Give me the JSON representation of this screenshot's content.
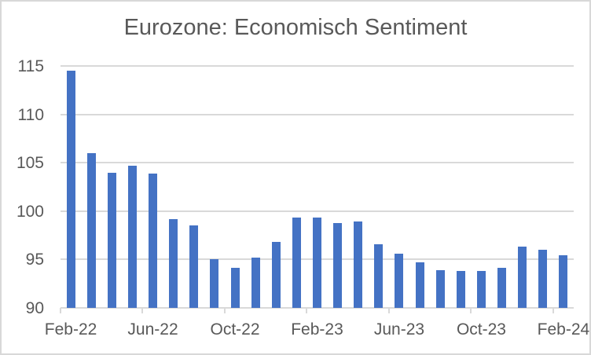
{
  "chart_data": {
    "type": "bar",
    "title": "Eurozone: Economisch Sentiment",
    "categories": [
      "Feb-22",
      "Mar-22",
      "Apr-22",
      "May-22",
      "Jun-22",
      "Jul-22",
      "Aug-22",
      "Sep-22",
      "Oct-22",
      "Nov-22",
      "Dec-22",
      "Jan-23",
      "Feb-23",
      "Mar-23",
      "Apr-23",
      "May-23",
      "Jun-23",
      "Jul-23",
      "Aug-23",
      "Sep-23",
      "Oct-23",
      "Nov-23",
      "Dec-23",
      "Jan-24",
      "Feb-24"
    ],
    "values": [
      114.5,
      106.0,
      104.0,
      104.7,
      103.9,
      99.2,
      98.5,
      95.0,
      94.1,
      95.2,
      96.8,
      99.3,
      99.3,
      98.8,
      98.9,
      96.6,
      95.6,
      94.7,
      93.9,
      93.8,
      93.8,
      94.1,
      96.3,
      96.0,
      95.4
    ],
    "x_tick_labels": [
      "Feb-22",
      "Jun-22",
      "Oct-22",
      "Feb-23",
      "Jun-23",
      "Oct-23",
      "Feb-24"
    ],
    "x_label_interval": 4,
    "xlabel": "",
    "ylabel": "",
    "ylim": [
      90,
      115
    ],
    "y_ticks": [
      90,
      95,
      100,
      105,
      110,
      115
    ],
    "grid": true,
    "legend": "none",
    "bar_color": "#4472C4",
    "gridline_color": "#D9D9D9",
    "axis_color": "#D9D9D9",
    "text_color": "#595959"
  }
}
